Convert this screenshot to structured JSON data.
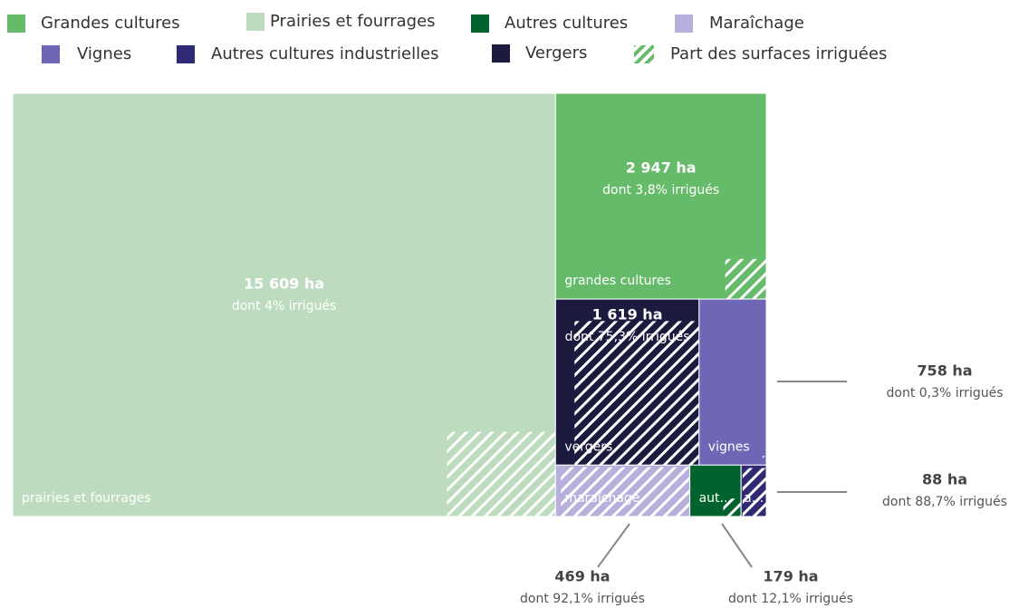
{
  "chart_data": {
    "type": "treemap",
    "categories": [
      "Grandes cultures",
      "Prairies et fourrages",
      "Autres cultures",
      "Maraîchage",
      "Vignes",
      "Autres cultures industrielles",
      "Vergers"
    ],
    "colors": [
      "#66bb6a",
      "#bddcbf",
      "#00632d",
      "#b7b0dc",
      "#6f67b5",
      "#2e2a73",
      "#1c1a3f"
    ],
    "values": [
      2947,
      15609,
      179,
      469,
      758,
      88,
      1619
    ],
    "value_labels": [
      "2 947 ha",
      "15 609 ha",
      "179 ha",
      "469 ha",
      "758 ha",
      "88 ha",
      "1 619 ha"
    ],
    "irrigated": [
      3.8,
      4,
      12.1,
      92.1,
      0.3,
      88.7,
      75.3
    ],
    "irrigated_labels": [
      "dont 3,8% irrigués",
      "dont 4% irrigués",
      "dont 12,1% irrigués",
      "dont 92,1% irrigués",
      "dont 0,3% irrigués",
      "dont 88,7% irrigués",
      "dont 75,3% irrigués"
    ],
    "box_labels": [
      "grandes cultures",
      "prairies et fourrages",
      "aut...",
      "maraîchage",
      "vignes",
      "a...",
      "vergers"
    ],
    "hatch_legend_label": "Part des surfaces irriguées"
  }
}
